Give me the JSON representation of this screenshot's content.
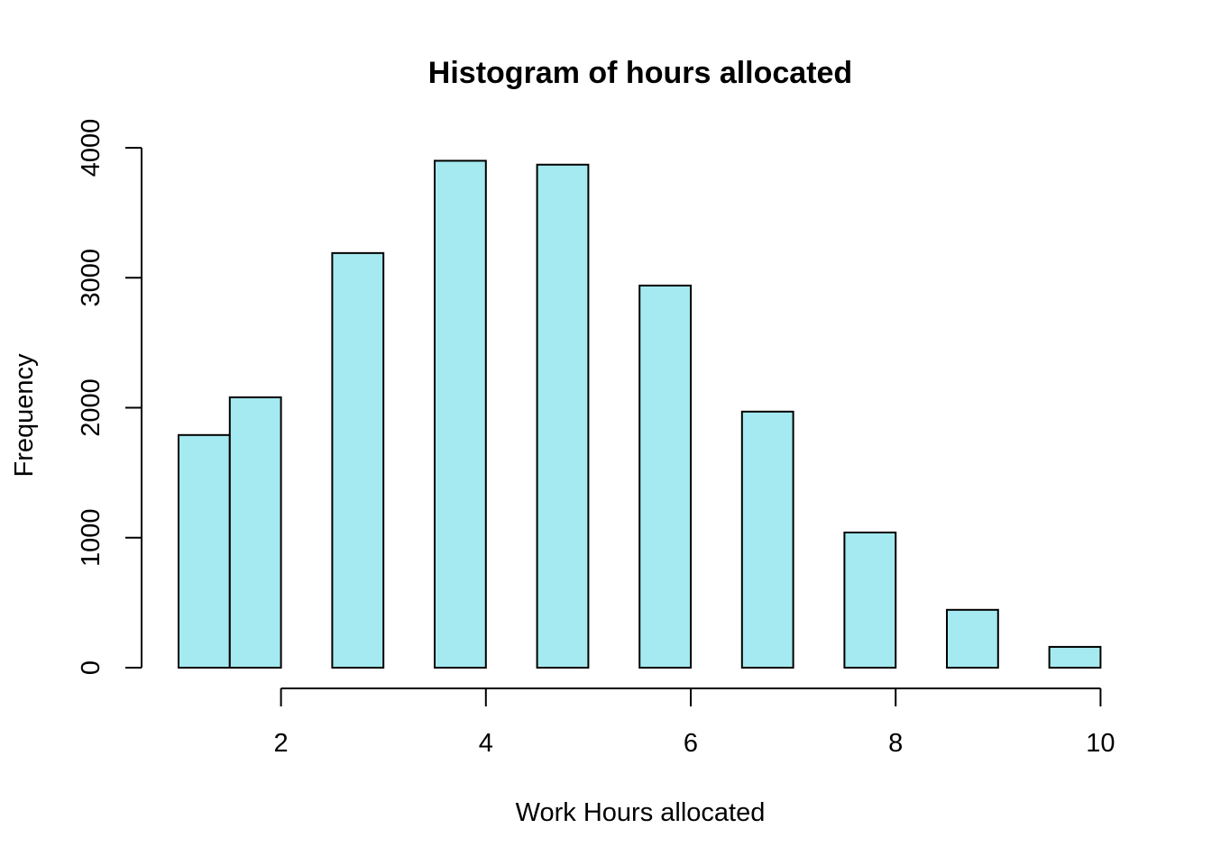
{
  "chart_data": {
    "type": "bar",
    "title": "Histogram of hours allocated",
    "xlabel": "Work Hours allocated",
    "ylabel": "Frequency",
    "bar_color": "#a4eaf0",
    "bins": [
      {
        "x0": 1.0,
        "x1": 1.5,
        "count": 1790
      },
      {
        "x0": 1.5,
        "x1": 2.0,
        "count": 2080
      },
      {
        "x0": 2.5,
        "x1": 3.0,
        "count": 3190
      },
      {
        "x0": 3.5,
        "x1": 4.0,
        "count": 3900
      },
      {
        "x0": 4.5,
        "x1": 5.0,
        "count": 3870
      },
      {
        "x0": 5.5,
        "x1": 6.0,
        "count": 2940
      },
      {
        "x0": 6.5,
        "x1": 7.0,
        "count": 1970
      },
      {
        "x0": 7.5,
        "x1": 8.0,
        "count": 1040
      },
      {
        "x0": 8.5,
        "x1": 9.0,
        "count": 445
      },
      {
        "x0": 9.5,
        "x1": 10.0,
        "count": 160
      }
    ],
    "xlim": [
      1,
      10
    ],
    "ylim": [
      0,
      4000
    ],
    "x_ticks": [
      2,
      4,
      6,
      8,
      10
    ],
    "x_tick_labels": [
      "2",
      "4",
      "6",
      "8",
      "10"
    ],
    "y_ticks": [
      0,
      1000,
      2000,
      3000,
      4000
    ],
    "y_tick_labels": [
      "0",
      "1000",
      "2000",
      "3000",
      "4000"
    ],
    "grid": false
  }
}
